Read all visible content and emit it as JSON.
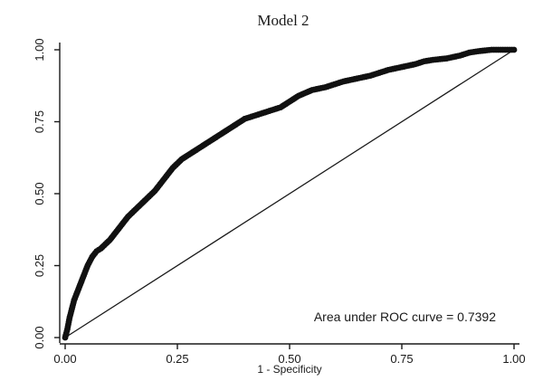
{
  "chart_data": {
    "type": "line",
    "title": "Model 2",
    "xlabel": "1 - Specificity",
    "ylabel": "",
    "xlim": [
      0,
      1
    ],
    "ylim": [
      0,
      1
    ],
    "x_ticks": [
      "0.00",
      "0.25",
      "0.50",
      "0.75",
      "1.00"
    ],
    "y_ticks": [
      "0.00",
      "0.25",
      "0.50",
      "0.75",
      "1.00"
    ],
    "grid": false,
    "annotation": "Area under ROC curve = 0.7392",
    "series": [
      {
        "style": "dots",
        "x": [
          0.0,
          0.005,
          0.01,
          0.015,
          0.02,
          0.03,
          0.04,
          0.05,
          0.06,
          0.07,
          0.08,
          0.1,
          0.12,
          0.14,
          0.16,
          0.18,
          0.2,
          0.22,
          0.24,
          0.26,
          0.28,
          0.3,
          0.32,
          0.34,
          0.36,
          0.38,
          0.4,
          0.42,
          0.44,
          0.46,
          0.48,
          0.5,
          0.52,
          0.55,
          0.58,
          0.6,
          0.62,
          0.65,
          0.68,
          0.7,
          0.72,
          0.75,
          0.78,
          0.8,
          0.82,
          0.85,
          0.88,
          0.9,
          0.92,
          0.95,
          0.98,
          1.0
        ],
        "y": [
          0.0,
          0.03,
          0.07,
          0.1,
          0.13,
          0.17,
          0.21,
          0.25,
          0.28,
          0.3,
          0.31,
          0.34,
          0.38,
          0.42,
          0.45,
          0.48,
          0.51,
          0.55,
          0.59,
          0.62,
          0.64,
          0.66,
          0.68,
          0.7,
          0.72,
          0.74,
          0.76,
          0.77,
          0.78,
          0.79,
          0.8,
          0.82,
          0.84,
          0.86,
          0.87,
          0.88,
          0.89,
          0.9,
          0.91,
          0.92,
          0.93,
          0.94,
          0.95,
          0.96,
          0.965,
          0.97,
          0.98,
          0.99,
          0.995,
          1.0,
          1.0,
          1.0
        ]
      },
      {
        "style": "reference-line",
        "x": [
          0,
          1
        ],
        "y": [
          0,
          1
        ]
      }
    ]
  }
}
